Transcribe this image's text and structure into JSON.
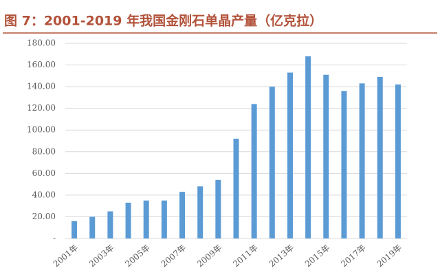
{
  "chart_data": {
    "type": "bar",
    "title": "图 7：2001-2019 年我国金刚石单晶产量（亿克拉）",
    "categories": [
      "2001年",
      null,
      "2003年",
      null,
      "2005年",
      null,
      "2007年",
      null,
      "2009年",
      null,
      "2011年",
      null,
      "2013年",
      null,
      "2015年",
      null,
      "2017年",
      null,
      "2019年"
    ],
    "values": [
      16,
      20,
      25,
      33,
      35,
      35,
      43,
      48,
      54,
      92,
      124,
      140,
      153,
      168,
      151,
      136,
      143,
      149,
      142
    ],
    "color": "#5b9bd5",
    "ylim": [
      0,
      180
    ],
    "yticks": [
      {
        "value": 0,
        "label": "-"
      },
      {
        "value": 20,
        "label": "20.00"
      },
      {
        "value": 40,
        "label": "40.00"
      },
      {
        "value": 60,
        "label": "60.00"
      },
      {
        "value": 80,
        "label": "80.00"
      },
      {
        "value": 100,
        "label": "100.00"
      },
      {
        "value": 120,
        "label": "120.00"
      },
      {
        "value": 140,
        "label": "140.00"
      },
      {
        "value": 160,
        "label": "160.00"
      },
      {
        "value": 180,
        "label": "180.00"
      }
    ],
    "grid": true
  }
}
